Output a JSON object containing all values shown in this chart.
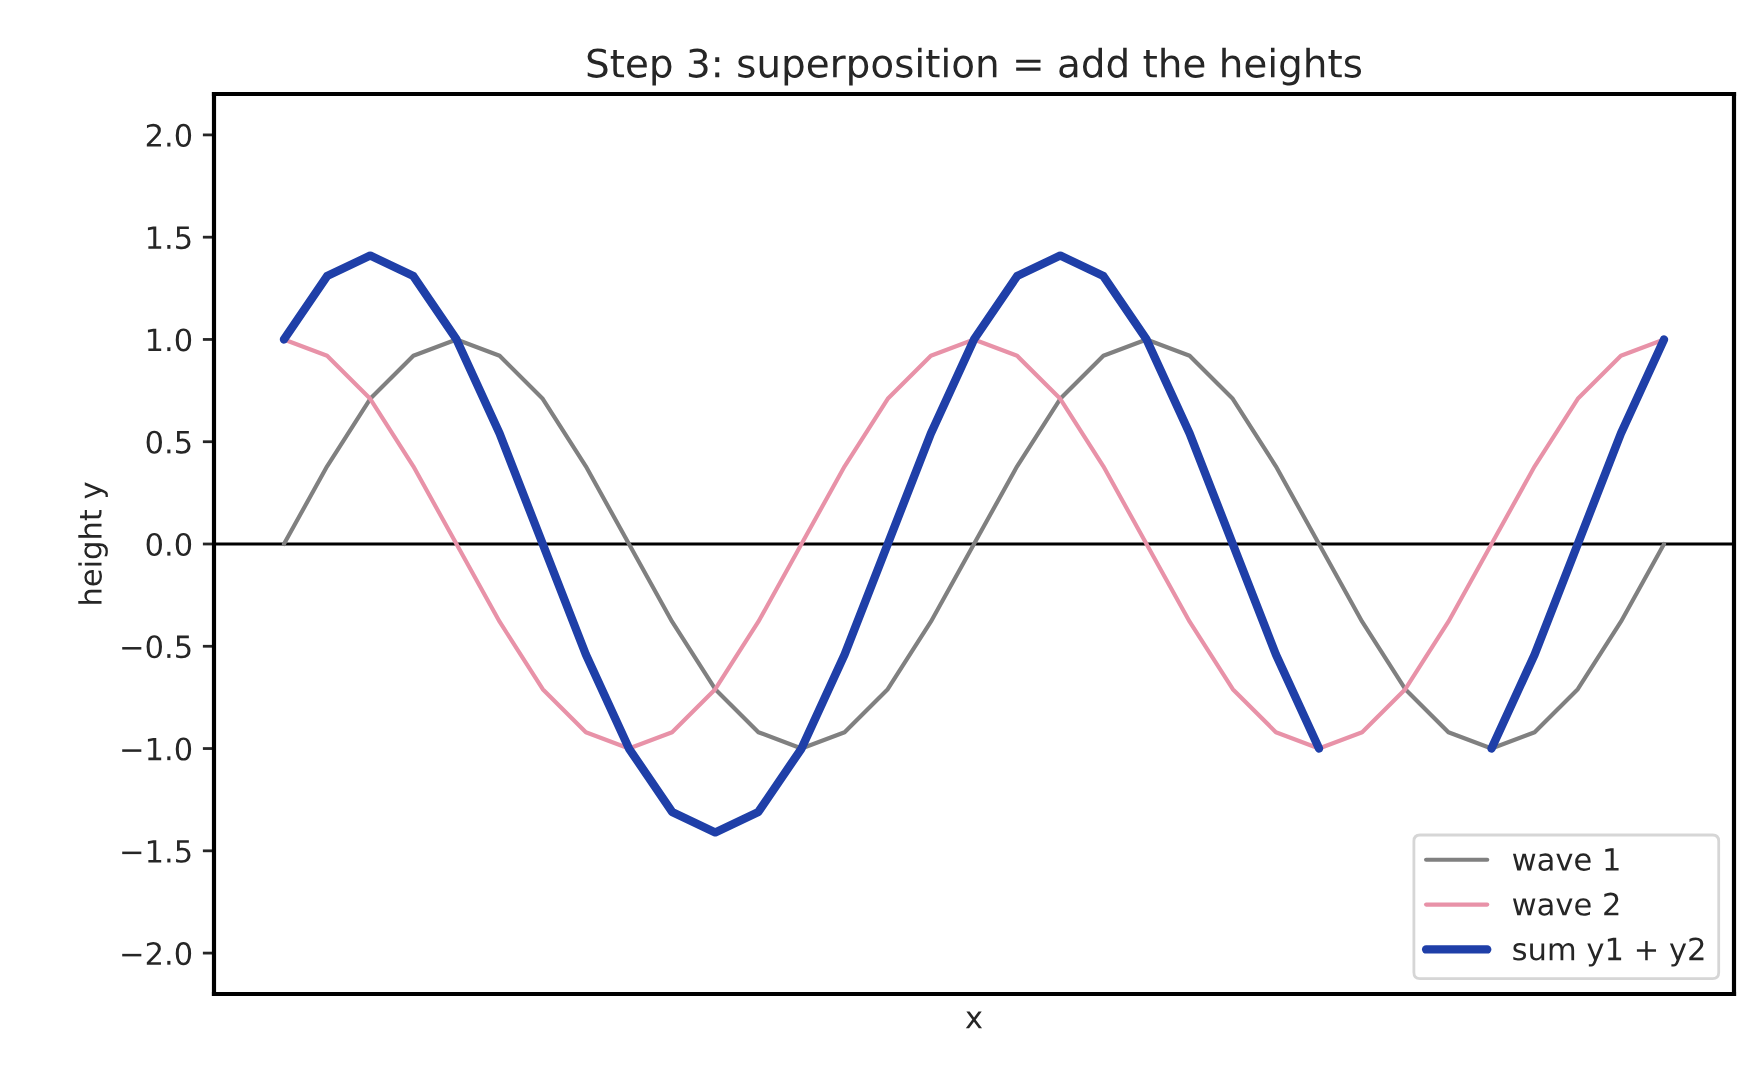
{
  "chart_data": {
    "type": "line",
    "title": "Step 3: superposition = add the heights",
    "xlabel": "x",
    "ylabel": "height y",
    "categories": [
      null,
      null,
      null,
      null,
      null,
      null,
      null,
      null,
      null,
      null,
      null,
      null,
      null,
      null,
      null,
      null,
      null,
      null,
      null,
      null,
      null,
      null,
      null,
      null,
      null,
      null,
      null,
      null,
      null,
      null,
      null,
      null,
      null
    ],
    "series": [
      {
        "name": "wave 1",
        "color": "#808080",
        "values": [
          0,
          0.38,
          0.71,
          0.92,
          1,
          0.92,
          0.71,
          0.38,
          0,
          -0.38,
          -0.71,
          -0.92,
          -1,
          -0.92,
          -0.71,
          -0.38,
          0,
          0.38,
          0.71,
          0.92,
          1,
          0.92,
          0.71,
          0.38,
          0,
          -0.38,
          -0.71,
          -0.92,
          -1,
          -0.92,
          -0.71,
          -0.38,
          0
        ]
      },
      {
        "name": "wave 2",
        "color": "#e892a8",
        "values": [
          1,
          0.92,
          0.71,
          0.38,
          0,
          -0.38,
          -0.71,
          -0.92,
          -1,
          -0.92,
          -0.71,
          -0.38,
          0,
          0.38,
          0.71,
          0.92,
          1,
          0.92,
          0.71,
          0.38,
          0,
          -0.38,
          -0.71,
          -0.92,
          -1,
          -0.92,
          -0.71,
          -0.38,
          0,
          0.38,
          0.71,
          0.92,
          1
        ]
      },
      {
        "name": "sum y1 + y2",
        "color": "#1f3fa8",
        "values": [
          1,
          1.31,
          1.41,
          1.31,
          1,
          0.54,
          0,
          -0.54,
          -1,
          -1.31,
          -1.41,
          -1.31,
          -1,
          -0.54,
          0,
          0.54,
          1,
          1.31,
          1.41,
          1.31,
          1,
          0.54,
          0,
          -0.54,
          -1,
          null,
          null,
          null,
          -1,
          -0.54,
          0,
          0.54,
          1
        ]
      }
    ],
    "ylim": [
      -2.2,
      2.2
    ],
    "yticks": [
      {
        "value": -2,
        "label": "−2.0"
      },
      -1.5,
      {
        "value": -1,
        "label": "−1.0"
      },
      -0.5,
      {
        "value": 0,
        "label": "0.0"
      },
      0.5,
      {
        "value": 1,
        "label": "1.0"
      },
      1.5,
      {
        "value": 2,
        "label": "2.0"
      }
    ],
    "ref_lines": [
      {
        "axis": "y",
        "value": 0,
        "color": "#000000"
      }
    ],
    "grid": false,
    "legend": "bottom right"
  }
}
